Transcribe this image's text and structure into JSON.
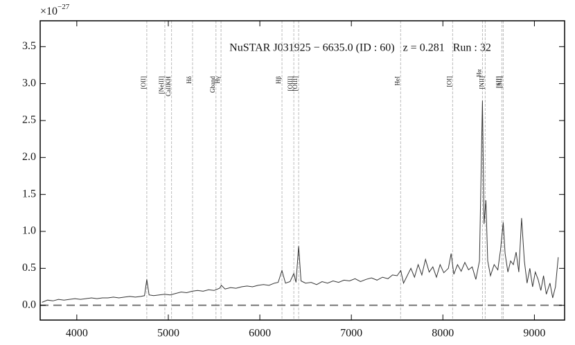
{
  "chart_data": {
    "type": "line",
    "title": "NuSTAR J031925 − 6635.0 (ID : 60)   z = 0.281   Run : 32",
    "axis_multiplier": {
      "base": "×10",
      "exponent": "−27"
    },
    "color": "#333333",
    "x": [
      3620,
      3680,
      3740,
      3800,
      3860,
      3920,
      3980,
      4040,
      4100,
      4160,
      4220,
      4280,
      4340,
      4400,
      4460,
      4520,
      4580,
      4640,
      4700,
      4740,
      4765,
      4790,
      4840,
      4900,
      4960,
      5020,
      5080,
      5140,
      5200,
      5260,
      5320,
      5380,
      5440,
      5500,
      5560,
      5580,
      5620,
      5680,
      5740,
      5800,
      5860,
      5920,
      5980,
      6040,
      6100,
      6160,
      6200,
      6242,
      6280,
      6330,
      6371,
      6395,
      6424,
      6450,
      6500,
      6560,
      6620,
      6680,
      6740,
      6800,
      6860,
      6920,
      6980,
      7040,
      7100,
      7160,
      7220,
      7280,
      7340,
      7400,
      7450,
      7500,
      7540,
      7570,
      7610,
      7650,
      7690,
      7730,
      7770,
      7810,
      7850,
      7890,
      7930,
      7970,
      8010,
      8060,
      8090,
      8120,
      8160,
      8200,
      8240,
      8280,
      8320,
      8360,
      8400,
      8432,
      8450,
      8470,
      8490,
      8520,
      8560,
      8600,
      8630,
      8659,
      8680,
      8710,
      8740,
      8770,
      8800,
      8830,
      8860,
      8890,
      8920,
      8950,
      8980,
      9010,
      9040,
      9070,
      9100,
      9130,
      9170,
      9200,
      9230,
      9260
    ],
    "values": [
      0.04,
      0.07,
      0.06,
      0.08,
      0.07,
      0.08,
      0.09,
      0.08,
      0.09,
      0.1,
      0.09,
      0.1,
      0.1,
      0.11,
      0.1,
      0.11,
      0.12,
      0.11,
      0.12,
      0.13,
      0.35,
      0.14,
      0.13,
      0.14,
      0.15,
      0.14,
      0.16,
      0.18,
      0.17,
      0.19,
      0.2,
      0.19,
      0.21,
      0.2,
      0.23,
      0.27,
      0.22,
      0.24,
      0.23,
      0.25,
      0.26,
      0.25,
      0.27,
      0.28,
      0.27,
      0.3,
      0.31,
      0.47,
      0.3,
      0.32,
      0.43,
      0.31,
      0.8,
      0.33,
      0.3,
      0.31,
      0.28,
      0.32,
      0.3,
      0.33,
      0.31,
      0.34,
      0.33,
      0.36,
      0.32,
      0.35,
      0.37,
      0.34,
      0.38,
      0.36,
      0.41,
      0.4,
      0.47,
      0.3,
      0.4,
      0.5,
      0.38,
      0.55,
      0.41,
      0.62,
      0.45,
      0.52,
      0.38,
      0.55,
      0.44,
      0.5,
      0.7,
      0.42,
      0.55,
      0.46,
      0.58,
      0.48,
      0.52,
      0.35,
      0.6,
      2.77,
      1.1,
      1.42,
      0.6,
      0.4,
      0.55,
      0.48,
      0.75,
      1.12,
      0.7,
      0.45,
      0.6,
      0.55,
      0.72,
      0.45,
      1.18,
      0.6,
      0.3,
      0.5,
      0.25,
      0.45,
      0.35,
      0.2,
      0.4,
      0.15,
      0.3,
      0.1,
      0.25,
      0.65
    ],
    "hline": 0,
    "lines": [
      {
        "label": "[OII]",
        "x": 4765
      },
      {
        "label": "[NeIII]",
        "x": 4962
      },
      {
        "label": "CaIIKH",
        "x": 5036
      },
      {
        "label": "Hδ",
        "x": 5265
      },
      {
        "label": "Gband",
        "x": 5521
      },
      {
        "label": "Hγ",
        "x": 5576
      },
      {
        "label": "Hβ",
        "x": 6242
      },
      {
        "label": "[OIII]",
        "x": 6371
      },
      {
        "label": "[OIII]",
        "x": 6424
      },
      {
        "label": "HeI",
        "x": 7538
      },
      {
        "label": "[OI]",
        "x": 8106
      },
      {
        "label": "Hα",
        "x": 8432
      },
      {
        "label": "[NII]",
        "x": 8462
      },
      {
        "label": "[SII]",
        "x": 8644
      },
      {
        "label": "[SII]",
        "x": 8659
      }
    ],
    "xlim": [
      3600,
      9330
    ],
    "xticks": [
      4000,
      5000,
      6000,
      7000,
      8000,
      9000
    ],
    "ylim": [
      -0.2,
      3.85
    ],
    "yticks": [
      {
        "value": 0,
        "label": "0.0"
      },
      0.5,
      {
        "value": 1,
        "label": "1.0"
      },
      1.5,
      {
        "value": 2,
        "label": "2.0"
      },
      2.5,
      {
        "value": 3,
        "label": "3.0"
      },
      3.5
    ]
  }
}
